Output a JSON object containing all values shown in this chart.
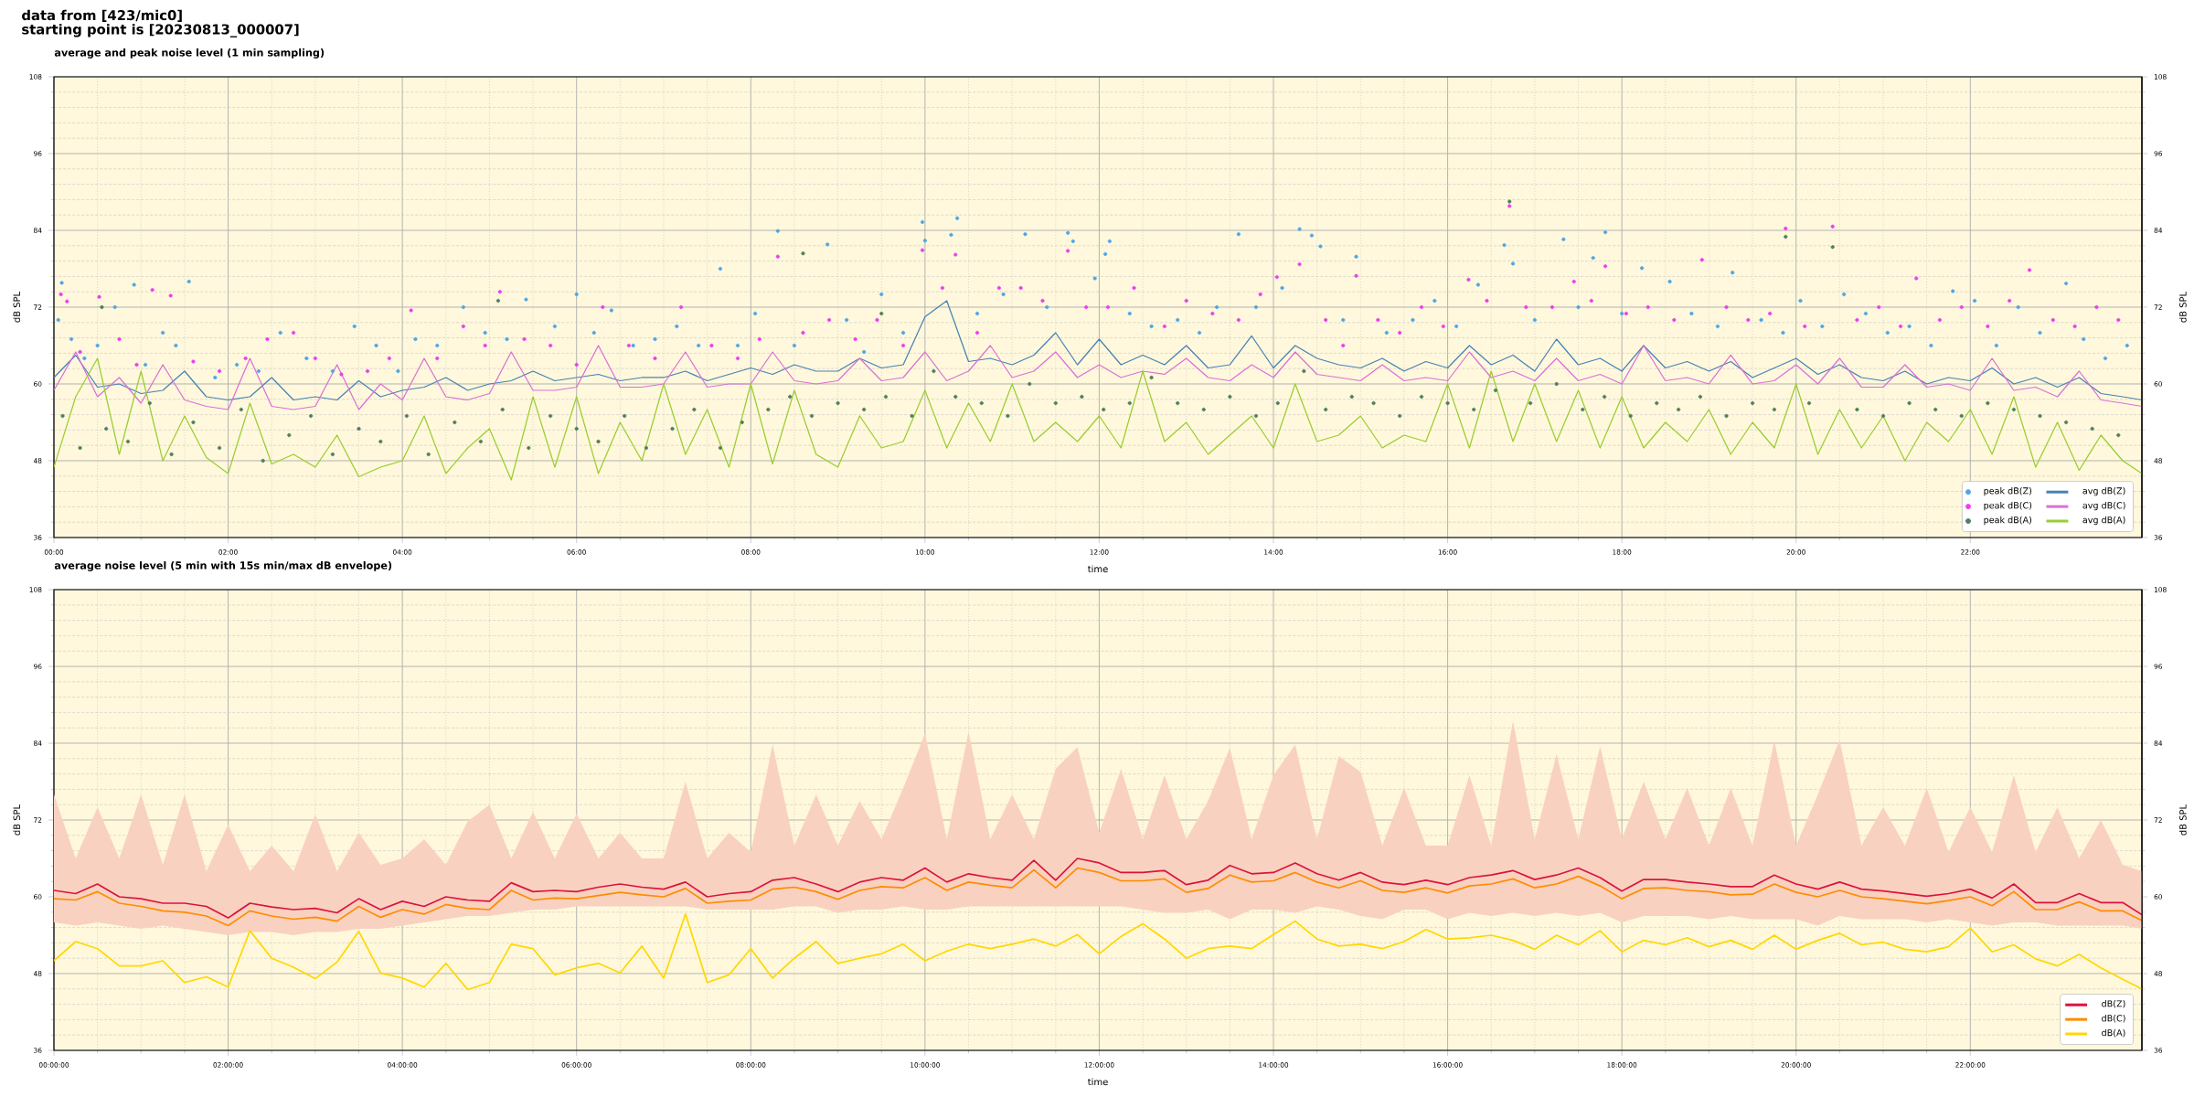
{
  "chart_data": [
    {
      "type": "line",
      "title": "average and peak noise level (1 min sampling)",
      "xlabel": "time",
      "ylabel": "dB SPL",
      "y2label": "dB SPL",
      "annotations": [
        "data from [423/mic0]",
        "starting point is [20230813_000007]"
      ],
      "x": [
        0,
        0.25,
        0.5,
        0.75,
        1,
        1.25,
        1.5,
        1.75,
        2,
        2.25,
        2.5,
        2.75,
        3,
        3.25,
        3.5,
        3.75,
        4,
        4.25,
        4.5,
        4.75,
        5,
        5.25,
        5.5,
        5.75,
        6,
        6.25,
        6.5,
        6.75,
        7,
        7.25,
        7.5,
        7.75,
        8,
        8.25,
        8.5,
        8.75,
        9,
        9.25,
        9.5,
        9.75,
        10,
        10.25,
        10.5,
        10.75,
        11,
        11.25,
        11.5,
        11.75,
        12,
        12.25,
        12.5,
        12.75,
        13,
        13.25,
        13.5,
        13.75,
        14,
        14.25,
        14.5,
        14.75,
        15,
        15.25,
        15.5,
        15.75,
        16,
        16.25,
        16.5,
        16.75,
        17,
        17.25,
        17.5,
        17.75,
        18,
        18.25,
        18.5,
        18.75,
        19,
        19.25,
        19.5,
        19.75,
        20,
        20.25,
        20.5,
        20.75,
        21,
        21.25,
        21.5,
        21.75,
        22,
        22.25,
        22.5,
        22.75,
        23,
        23.25,
        23.5,
        23.75,
        23.97
      ],
      "xlim": [
        0,
        23.97
      ],
      "xticks": [
        {
          "value": 0,
          "label": "00:00"
        },
        {
          "value": 2,
          "label": "02:00"
        },
        {
          "value": 4,
          "label": "04:00"
        },
        {
          "value": 6,
          "label": "06:00"
        },
        {
          "value": 8,
          "label": "08:00"
        },
        {
          "value": 10,
          "label": "10:00"
        },
        {
          "value": 12,
          "label": "12:00"
        },
        {
          "value": 14,
          "label": "14:00"
        },
        {
          "value": 16,
          "label": "16:00"
        },
        {
          "value": 18,
          "label": "18:00"
        },
        {
          "value": 20,
          "label": "20:00"
        },
        {
          "value": 22,
          "label": "22:00"
        }
      ],
      "ylim": [
        36,
        108
      ],
      "yticks": [
        36,
        48,
        60,
        72,
        84,
        96,
        108
      ],
      "y2lim": [
        36,
        108
      ],
      "y2ticks": [
        36,
        48,
        60,
        72,
        84,
        96,
        108
      ],
      "grid": true,
      "legend": "bottom right",
      "series": [
        {
          "name": "peak dB(Z)",
          "type": "scatter",
          "marker": "circle",
          "color": "#4da6e8",
          "x": [
            0.05,
            0.09,
            0.2,
            0.35,
            0.5,
            0.7,
            0.92,
            1.05,
            1.25,
            1.4,
            1.55,
            1.85,
            2.1,
            2.35,
            2.6,
            2.9,
            3.2,
            3.45,
            3.7,
            3.95,
            4.15,
            4.4,
            4.7,
            4.95,
            5.2,
            5.42,
            5.75,
            6.0,
            6.2,
            6.4,
            6.65,
            6.9,
            7.15,
            7.4,
            7.65,
            7.85,
            8.05,
            8.31,
            8.5,
            8.88,
            9.1,
            9.3,
            9.5,
            9.75,
            9.97,
            10.0,
            10.3,
            10.37,
            10.6,
            10.9,
            11.15,
            11.4,
            11.64,
            11.7,
            11.95,
            12.07,
            12.12,
            12.35,
            12.6,
            12.9,
            13.15,
            13.35,
            13.6,
            13.8,
            14.1,
            14.3,
            14.44,
            14.54,
            14.8,
            14.95,
            15.3,
            15.6,
            15.85,
            16.1,
            16.35,
            16.65,
            16.75,
            17.0,
            17.33,
            17.5,
            17.67,
            17.81,
            18.0,
            18.23,
            18.55,
            18.8,
            19.1,
            19.27,
            19.6,
            19.85,
            20.05,
            20.3,
            20.55,
            20.8,
            21.05,
            21.3,
            21.55,
            21.8,
            22.05,
            22.3,
            22.55,
            22.8,
            23.1,
            23.3,
            23.55,
            23.8
          ],
          "values": [
            70,
            75.8,
            67,
            64,
            66,
            72,
            75.5,
            63,
            68,
            66,
            76,
            61,
            63,
            62,
            68,
            64,
            62,
            69,
            66,
            62,
            67,
            66,
            72,
            68,
            67,
            73.2,
            69,
            74,
            68,
            71.5,
            66,
            67,
            69,
            66,
            78,
            66,
            71,
            83.9,
            66,
            81.8,
            70,
            65,
            74,
            68,
            85.3,
            82.4,
            83.3,
            85.9,
            71,
            74,
            83.4,
            72,
            83.6,
            82.3,
            76.5,
            80.3,
            82.3,
            71,
            69,
            70,
            68,
            72,
            83.4,
            72,
            75,
            84.2,
            83.2,
            81.5,
            70,
            79.9,
            68,
            70,
            73,
            69,
            75.5,
            81.7,
            78.8,
            70,
            82.6,
            72,
            79.7,
            83.7,
            71,
            78.1,
            76,
            71,
            69,
            77.4,
            70,
            68,
            73,
            69,
            74,
            71,
            68,
            69,
            66,
            74.5,
            73,
            66,
            72,
            68,
            75.7,
            67,
            64,
            66
          ]
        },
        {
          "name": "peak dB(C)",
          "type": "scatter",
          "marker": "circle",
          "color": "#f03cf0",
          "x": [
            0.08,
            0.15,
            0.3,
            0.52,
            0.75,
            0.95,
            1.13,
            1.34,
            1.6,
            1.9,
            2.2,
            2.45,
            2.75,
            3.0,
            3.3,
            3.6,
            3.85,
            4.1,
            4.4,
            4.7,
            4.95,
            5.12,
            5.4,
            5.7,
            6.0,
            6.3,
            6.6,
            6.9,
            7.2,
            7.55,
            7.85,
            8.1,
            8.31,
            8.6,
            8.9,
            9.2,
            9.45,
            9.75,
            9.97,
            10.2,
            10.35,
            10.6,
            10.85,
            11.1,
            11.35,
            11.64,
            11.85,
            12.1,
            12.4,
            12.75,
            13.0,
            13.3,
            13.6,
            13.85,
            14.04,
            14.3,
            14.6,
            14.8,
            14.95,
            15.2,
            15.45,
            15.7,
            15.95,
            16.24,
            16.45,
            16.71,
            16.9,
            17.2,
            17.45,
            17.65,
            17.81,
            18.05,
            18.3,
            18.6,
            18.92,
            19.2,
            19.45,
            19.7,
            19.88,
            20.1,
            20.42,
            20.7,
            20.95,
            21.2,
            21.38,
            21.65,
            21.9,
            22.2,
            22.45,
            22.68,
            22.95,
            23.2,
            23.45,
            23.7
          ],
          "values": [
            74,
            72.9,
            65,
            73.6,
            67,
            63,
            74.7,
            73.8,
            63.5,
            62,
            64,
            67,
            68,
            64,
            61.5,
            62,
            64,
            71.5,
            64,
            69,
            66,
            74.4,
            67,
            66,
            63,
            72,
            66,
            64,
            72,
            66,
            64,
            67,
            79.9,
            68,
            70,
            67,
            70,
            66,
            80.9,
            75,
            80.2,
            68,
            75,
            75,
            73,
            80.8,
            72,
            72,
            75,
            69,
            73,
            71,
            70,
            74,
            76.7,
            78.7,
            70,
            66,
            76.9,
            70,
            68,
            72,
            69,
            76.3,
            73,
            87.8,
            72,
            72,
            76,
            73,
            78.4,
            71,
            72,
            70,
            79.4,
            72,
            70,
            71,
            84.3,
            69,
            84.6,
            70,
            72,
            69,
            76.5,
            70,
            72,
            69,
            73,
            77.8,
            70,
            69,
            72,
            70
          ]
        },
        {
          "name": "peak dB(A)",
          "type": "scatter",
          "marker": "circle",
          "color": "#4e8060",
          "x": [
            0.1,
            0.3,
            0.55,
            0.6,
            0.85,
            1.1,
            1.35,
            1.6,
            1.9,
            2.15,
            2.4,
            2.7,
            2.95,
            3.2,
            3.5,
            3.75,
            4.05,
            4.3,
            4.6,
            4.9,
            5.1,
            5.15,
            5.45,
            5.7,
            6.0,
            6.25,
            6.55,
            6.8,
            7.1,
            7.35,
            7.65,
            7.9,
            8.2,
            8.45,
            8.6,
            8.7,
            9.0,
            9.3,
            9.5,
            9.55,
            9.85,
            10.1,
            10.35,
            10.65,
            10.95,
            11.2,
            11.5,
            11.8,
            12.05,
            12.35,
            12.6,
            12.9,
            13.2,
            13.5,
            13.8,
            14.05,
            14.35,
            14.6,
            14.9,
            15.15,
            15.45,
            15.7,
            16.0,
            16.3,
            16.55,
            16.71,
            16.95,
            17.25,
            17.55,
            17.8,
            18.1,
            18.4,
            18.65,
            18.9,
            19.2,
            19.5,
            19.75,
            19.88,
            20.15,
            20.42,
            20.7,
            21.0,
            21.3,
            21.6,
            21.9,
            22.2,
            22.5,
            22.8,
            23.1,
            23.4,
            23.7
          ],
          "values": [
            55,
            50,
            72,
            53,
            51,
            57,
            49,
            54,
            50,
            56,
            48,
            52,
            55,
            49,
            53,
            51,
            55,
            49,
            54,
            51,
            73,
            56,
            50,
            55,
            53,
            51,
            55,
            50,
            53,
            56,
            50,
            54,
            56,
            58,
            80.4,
            55,
            57,
            56,
            71,
            58,
            55,
            62,
            58,
            57,
            55,
            60,
            57,
            58,
            56,
            57,
            61,
            57,
            56,
            58,
            55,
            57,
            62,
            56,
            58,
            57,
            55,
            58,
            57,
            56,
            59,
            88.5,
            57,
            60,
            56,
            58,
            55,
            57,
            56,
            58,
            55,
            57,
            56,
            83,
            57,
            81.4,
            56,
            55,
            57,
            56,
            55,
            57,
            56,
            55,
            54,
            53,
            52
          ]
        },
        {
          "name": "avg dB(Z)",
          "color": "#4682b4",
          "values": [
            61,
            64.5,
            59.5,
            60,
            58.5,
            59,
            62,
            58,
            57.5,
            58,
            61,
            57.5,
            58,
            57.5,
            60.5,
            58,
            59,
            59.5,
            61,
            59,
            60,
            60.5,
            62,
            60.5,
            61,
            61.5,
            60.5,
            61,
            61,
            62,
            60.5,
            61.5,
            62.5,
            61.5,
            63,
            62,
            62,
            64,
            62.5,
            63,
            70.5,
            73,
            63.5,
            64,
            63,
            64.5,
            68,
            63,
            67,
            63,
            64.5,
            63,
            66,
            62.5,
            63,
            67.5,
            62.5,
            66,
            64,
            63,
            62.5,
            64,
            62,
            63.5,
            62.5,
            66,
            63,
            64.5,
            62,
            67,
            63,
            64,
            62,
            66,
            62.5,
            63.5,
            62,
            63.5,
            61,
            62.5,
            64,
            61.5,
            63,
            61,
            60.5,
            62,
            60,
            61,
            60.5,
            62.5,
            60,
            61,
            59.5,
            61,
            58.5,
            58,
            57.5
          ]
        },
        {
          "name": "avg dB(C)",
          "color": "#da70d6",
          "values": [
            59,
            65,
            58,
            61,
            57,
            63,
            57.5,
            56.5,
            56,
            64,
            56.5,
            56,
            56.5,
            63,
            56,
            60,
            57.5,
            64,
            58,
            57.5,
            58.5,
            65,
            59,
            59,
            59.5,
            66,
            59.5,
            59.5,
            60,
            65,
            59.5,
            60,
            60,
            65,
            60.5,
            60,
            60.5,
            64,
            60.5,
            61,
            65,
            60.5,
            62,
            66,
            61,
            62,
            65,
            61,
            63,
            61,
            62,
            61.5,
            64,
            61,
            60.5,
            63,
            61,
            65,
            61.5,
            61,
            60.5,
            63,
            60.5,
            61,
            60.5,
            65,
            61,
            62,
            60.5,
            64,
            60.5,
            61.5,
            60,
            66,
            60.5,
            61,
            60,
            64.5,
            60,
            60.5,
            63,
            60,
            64,
            59.5,
            59.5,
            63,
            59.5,
            60,
            59,
            64,
            59,
            59.5,
            58,
            62,
            57.5,
            57,
            56.5
          ]
        },
        {
          "name": "avg dB(A)",
          "color": "#9acd32",
          "values": [
            47,
            58,
            64,
            49,
            62,
            48,
            55,
            48.5,
            46,
            57,
            47.5,
            49,
            47,
            52,
            45.5,
            47,
            48,
            55,
            46,
            50,
            53,
            45,
            58,
            47,
            58,
            46,
            54,
            48,
            60,
            49,
            56,
            47,
            60,
            47.5,
            59,
            49,
            47,
            55,
            50,
            51,
            59,
            50,
            57,
            51,
            60,
            51,
            54,
            51,
            55,
            50,
            62,
            51,
            54,
            49,
            52,
            55,
            50,
            60,
            51,
            52,
            55,
            50,
            52,
            51,
            60,
            50,
            62,
            51,
            60,
            51,
            59,
            50,
            58,
            50,
            54,
            51,
            56,
            49,
            54,
            50,
            60,
            49,
            56,
            50,
            55,
            48,
            54,
            51,
            56,
            49,
            58,
            47,
            54,
            46.5,
            52,
            48,
            46
          ]
        }
      ]
    },
    {
      "type": "line",
      "title": "average noise level (5 min with 15s min/max dB envelope)",
      "xlabel": "time",
      "ylabel": "dB SPL",
      "y2label": "dB SPL",
      "x": [
        0,
        0.25,
        0.5,
        0.75,
        1,
        1.25,
        1.5,
        1.75,
        2,
        2.25,
        2.5,
        2.75,
        3,
        3.25,
        3.5,
        3.75,
        4,
        4.25,
        4.5,
        4.75,
        5,
        5.25,
        5.5,
        5.75,
        6,
        6.25,
        6.5,
        6.75,
        7,
        7.25,
        7.5,
        7.75,
        8,
        8.25,
        8.5,
        8.75,
        9,
        9.25,
        9.5,
        9.75,
        10,
        10.25,
        10.5,
        10.75,
        11,
        11.25,
        11.5,
        11.75,
        12,
        12.25,
        12.5,
        12.75,
        13,
        13.25,
        13.5,
        13.75,
        14,
        14.25,
        14.5,
        14.75,
        15,
        15.25,
        15.5,
        15.75,
        16,
        16.25,
        16.5,
        16.75,
        17,
        17.25,
        17.5,
        17.75,
        18,
        18.25,
        18.5,
        18.75,
        19,
        19.25,
        19.5,
        19.75,
        20,
        20.25,
        20.5,
        20.75,
        21,
        21.25,
        21.5,
        21.75,
        22,
        22.25,
        22.5,
        22.75,
        23,
        23.25,
        23.5,
        23.75,
        23.97
      ],
      "xlim": [
        0,
        23.97
      ],
      "xticks": [
        {
          "value": 0,
          "label": "00:00:00"
        },
        {
          "value": 2,
          "label": "02:00:00"
        },
        {
          "value": 4,
          "label": "04:00:00"
        },
        {
          "value": 6,
          "label": "06:00:00"
        },
        {
          "value": 8,
          "label": "08:00:00"
        },
        {
          "value": 10,
          "label": "10:00:00"
        },
        {
          "value": 12,
          "label": "12:00:00"
        },
        {
          "value": 14,
          "label": "14:00:00"
        },
        {
          "value": 16,
          "label": "16:00:00"
        },
        {
          "value": 18,
          "label": "18:00:00"
        },
        {
          "value": 20,
          "label": "20:00:00"
        },
        {
          "value": 22,
          "label": "22:00:00"
        }
      ],
      "ylim": [
        36,
        108
      ],
      "yticks": [
        36,
        48,
        60,
        72,
        84,
        96,
        108
      ],
      "y2lim": [
        36,
        108
      ],
      "y2ticks": [
        36,
        48,
        60,
        72,
        84,
        96,
        108
      ],
      "grid": true,
      "legend": "bottom right",
      "series": [
        {
          "name": "dB(Z)",
          "color": "#dc143c",
          "values": [
            61,
            60.5,
            62,
            60,
            59.7,
            59,
            59,
            58.5,
            56.7,
            59,
            58.4,
            58,
            58.2,
            57.5,
            59.7,
            58,
            59.3,
            58.5,
            60,
            59.5,
            59.3,
            62.2,
            60.8,
            61,
            60.8,
            61.5,
            62,
            61.5,
            61.2,
            62.3,
            60,
            60.5,
            60.8,
            62.6,
            63,
            62,
            60.8,
            62.3,
            63,
            62.6,
            64.5,
            62.3,
            63.6,
            63,
            62.6,
            65.7,
            62.6,
            66,
            65.3,
            63.8,
            63.8,
            64.1,
            61.9,
            62.6,
            64.9,
            63.6,
            63.8,
            65.3,
            63.6,
            62.6,
            63.8,
            62.3,
            61.9,
            62.6,
            61.9,
            63,
            63.4,
            64.1,
            62.7,
            63.4,
            64.5,
            63,
            60.9,
            62.7,
            62.7,
            62.3,
            62,
            61.6,
            61.6,
            63.4,
            62,
            61.2,
            62.3,
            61.2,
            60.9,
            60.5,
            60.1,
            60.5,
            61.2,
            59.8,
            62,
            59.1,
            59.1,
            60.5,
            59.1,
            59.1,
            57.2
          ],
          "lower": [
            56,
            55.5,
            56,
            55.5,
            55,
            55.5,
            55,
            54.5,
            54,
            54.5,
            54.5,
            54,
            54.5,
            54.5,
            55,
            55,
            55.5,
            56,
            56.5,
            57,
            57,
            57.5,
            58,
            58,
            58.5,
            58.5,
            58.5,
            58.5,
            58.5,
            58.5,
            58,
            58,
            58,
            58,
            58.5,
            58.5,
            57.5,
            58,
            58,
            58.5,
            58,
            58,
            58.5,
            58.5,
            58.5,
            58.5,
            58.5,
            58.5,
            58.5,
            58.5,
            58,
            57.5,
            57.5,
            58,
            56.5,
            58,
            58,
            57.5,
            58.5,
            58,
            57,
            56.5,
            58,
            58,
            56.5,
            57.5,
            57,
            57.5,
            57,
            57.5,
            57,
            57.5,
            56,
            57,
            57,
            57,
            56.5,
            57,
            56.5,
            56.5,
            56.5,
            55.5,
            57,
            56.5,
            56.5,
            56.5,
            56,
            56.5,
            56,
            55.5,
            56,
            56,
            55.5,
            55.5,
            55.5,
            55.5,
            55
          ],
          "upper": [
            76,
            66,
            74,
            66,
            76,
            65,
            76,
            64,
            71.3,
            64,
            68,
            64,
            72.9,
            64,
            70,
            65,
            66,
            69,
            65,
            71.8,
            74.4,
            66,
            73.3,
            66,
            73,
            66,
            70,
            66,
            66,
            78,
            66,
            70,
            67,
            83.8,
            68,
            76,
            68,
            75,
            69,
            77,
            85.5,
            69,
            85.8,
            69,
            76,
            69,
            80,
            83.4,
            70,
            80,
            69,
            79,
            69,
            75,
            83.3,
            69,
            79,
            83.8,
            69,
            82,
            79.5,
            68,
            77,
            68,
            68,
            79,
            68,
            87.5,
            69,
            82.3,
            69,
            83.5,
            69,
            78,
            69,
            77,
            68,
            77,
            68,
            84.4,
            68,
            76,
            84.5,
            68,
            74,
            68,
            77,
            67,
            74,
            67,
            79,
            67,
            74,
            66,
            72,
            65,
            64
          ]
        },
        {
          "name": "dB(C)",
          "color": "#ff8c00",
          "values": [
            59.7,
            59.5,
            60.8,
            59,
            58.5,
            57.8,
            57.6,
            57,
            55.5,
            57.8,
            57,
            56.5,
            56.8,
            56.2,
            58.5,
            56.8,
            58,
            57.3,
            58.8,
            58.2,
            58,
            61,
            59.5,
            59.8,
            59.7,
            60.2,
            60.7,
            60.3,
            60,
            61.3,
            59,
            59.3,
            59.5,
            61.2,
            61.5,
            60.8,
            59.6,
            61,
            61.6,
            61.4,
            63,
            61,
            62.3,
            61.8,
            61.4,
            64.2,
            61.4,
            64.5,
            63.8,
            62.5,
            62.5,
            62.8,
            60.7,
            61.3,
            63.4,
            62.3,
            62.5,
            63.8,
            62.3,
            61.4,
            62.5,
            61,
            60.7,
            61.4,
            60.6,
            61.7,
            62,
            62.8,
            61.4,
            62,
            63.2,
            61.7,
            59.7,
            61.3,
            61.4,
            61,
            60.8,
            60.3,
            60.4,
            62,
            60.7,
            60,
            61,
            60,
            59.7,
            59.3,
            58.9,
            59.4,
            60,
            58.6,
            60.8,
            58,
            58,
            59.2,
            57.8,
            57.8,
            56.3
          ]
        },
        {
          "name": "dB(A)",
          "color": "#ffd700",
          "values": [
            50,
            53,
            51.9,
            49.2,
            49.2,
            50,
            46.6,
            47.5,
            45.9,
            54.7,
            50.4,
            49,
            47.2,
            49.8,
            54.6,
            48.1,
            47.3,
            45.9,
            49.6,
            45.5,
            46.6,
            52.6,
            51.9,
            47.8,
            48.9,
            49.6,
            48.1,
            52.3,
            47.3,
            57.3,
            46.6,
            47.8,
            51.9,
            47.3,
            50.4,
            53,
            49.6,
            50.4,
            51.1,
            52.6,
            50,
            51.5,
            52.6,
            51.9,
            52.6,
            53.4,
            52.3,
            54.1,
            51.1,
            53.8,
            55.8,
            53.4,
            50.4,
            51.9,
            52.3,
            51.9,
            54.1,
            56.2,
            53.4,
            52.3,
            52.6,
            51.9,
            53,
            54.9,
            53.4,
            53.6,
            54,
            53.2,
            51.8,
            54,
            52.5,
            54.7,
            51.4,
            53.2,
            52.5,
            53.6,
            52.2,
            53.2,
            51.8,
            54,
            51.8,
            53.2,
            54.3,
            52.5,
            52.9,
            51.8,
            51.4,
            52.2,
            55.1,
            51.4,
            52.5,
            50.3,
            49.2,
            51,
            48.9,
            47.1,
            45.6
          ]
        }
      ]
    }
  ]
}
